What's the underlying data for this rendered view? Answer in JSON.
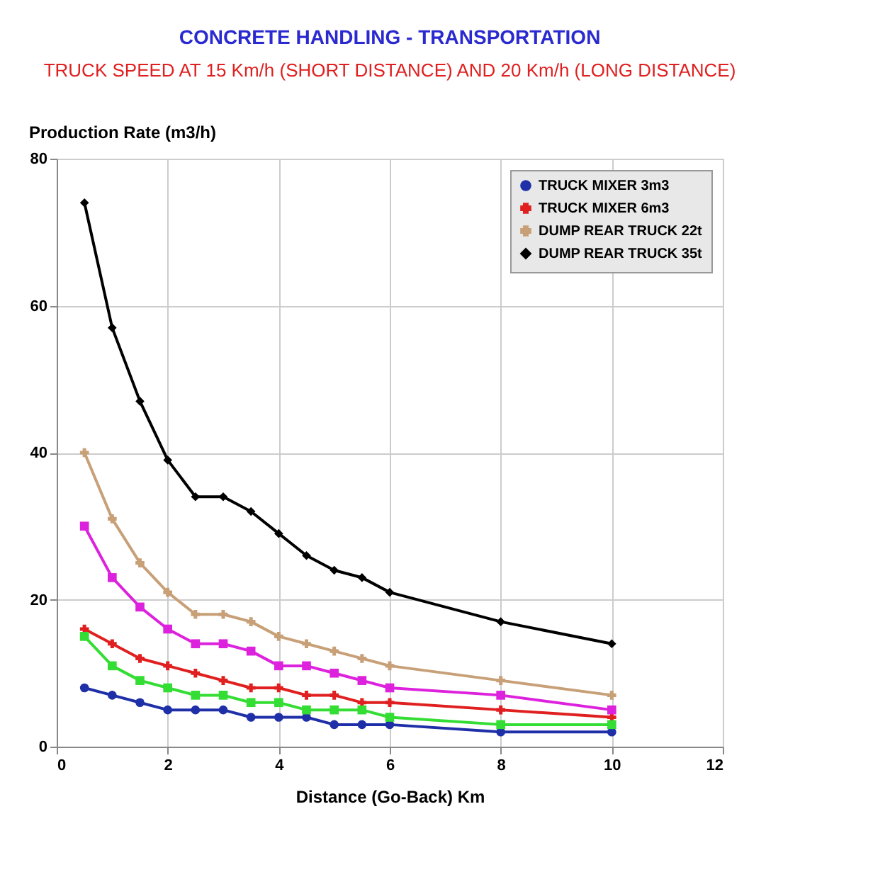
{
  "chart_data": {
    "type": "line",
    "title": "CONCRETE HANDLING - TRANSPORTATION",
    "subtitle": "TRUCK SPEED AT 15 Km/h (SHORT DISTANCE) AND 20 Km/h (LONG DISTANCE)",
    "ylabel": "Production Rate (m3/h)",
    "xlabel": "Distance (Go-Back) Km",
    "x": [
      0.5,
      1,
      1.5,
      2,
      2.5,
      3,
      3.5,
      4,
      4.5,
      5,
      5.5,
      6,
      8,
      10
    ],
    "xlim": [
      0,
      12
    ],
    "xticks": [
      0,
      2,
      4,
      6,
      8,
      10,
      12
    ],
    "ylim": [
      0,
      80
    ],
    "yticks": [
      0,
      20,
      40,
      60,
      80
    ],
    "grid": true,
    "legend": "top right",
    "series": [
      {
        "name": "TRUCK MIXER 3m3",
        "color": "#1f2fa8",
        "marker": "circle",
        "values": [
          8,
          7,
          6,
          5,
          5,
          5,
          4,
          4,
          4,
          3,
          3,
          3,
          2,
          2
        ]
      },
      {
        "name": "TRUCK MIXER 6m3",
        "color": "#e02020",
        "marker": "cross",
        "values": [
          16,
          14,
          12,
          11,
          10,
          9,
          8,
          8,
          7,
          7,
          6,
          6,
          5,
          4
        ]
      },
      {
        "color": "#33dd33",
        "marker": "square",
        "values": [
          15,
          11,
          9,
          8,
          7,
          7,
          6,
          6,
          5,
          5,
          5,
          4,
          3,
          3
        ]
      },
      {
        "color": "#dd22dd",
        "marker": "square",
        "values": [
          30,
          23,
          19,
          16,
          14,
          14,
          13,
          11,
          11,
          10,
          9,
          8,
          7,
          5
        ]
      },
      {
        "name": "DUMP REAR TRUCK 22t",
        "color": "#c8a078",
        "marker": "cross",
        "values": [
          40,
          31,
          25,
          21,
          18,
          18,
          17,
          15,
          14,
          13,
          12,
          11,
          9,
          7
        ]
      },
      {
        "name": "DUMP REAR TRUCK 35t",
        "color": "#000000",
        "marker": "diamond",
        "values": [
          74,
          57,
          47,
          39,
          34,
          34,
          32,
          29,
          26,
          24,
          23,
          21,
          17,
          14
        ]
      }
    ]
  }
}
